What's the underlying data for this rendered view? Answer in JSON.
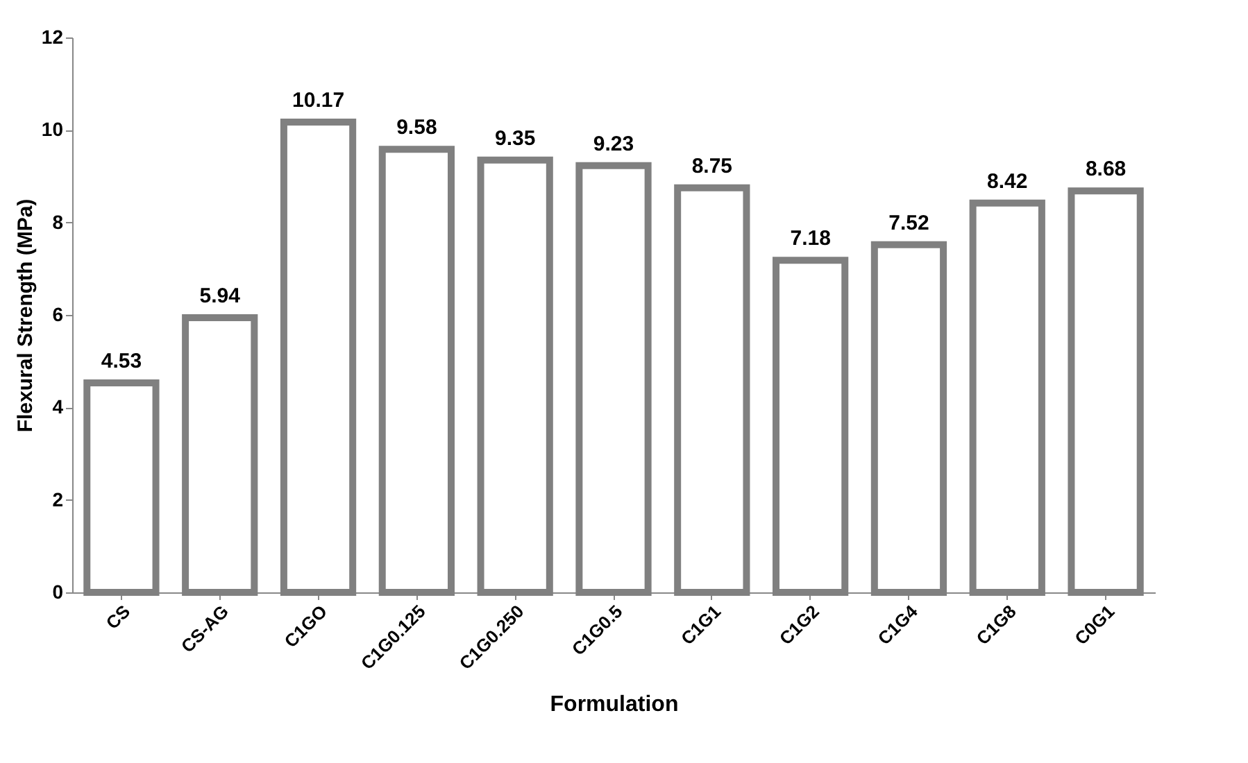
{
  "chart_data": {
    "type": "bar",
    "xlabel": "Formulation",
    "ylabel": "Flexural Strength (MPa)",
    "categories": [
      "CS",
      "CS-AG",
      "C1GO",
      "C1G0.125",
      "C1G0.250",
      "C1G0.5",
      "C1G1",
      "C1G2",
      "C1G4",
      "C1G8",
      "C0G1"
    ],
    "values": [
      4.53,
      5.94,
      10.17,
      9.58,
      9.35,
      9.23,
      8.75,
      7.18,
      7.52,
      8.42,
      8.68
    ],
    "color": "#808080",
    "ylim": [
      0,
      12
    ],
    "yticks": [
      0,
      2,
      4,
      6,
      8,
      10,
      12
    ],
    "grid": false,
    "data_labels": true
  }
}
